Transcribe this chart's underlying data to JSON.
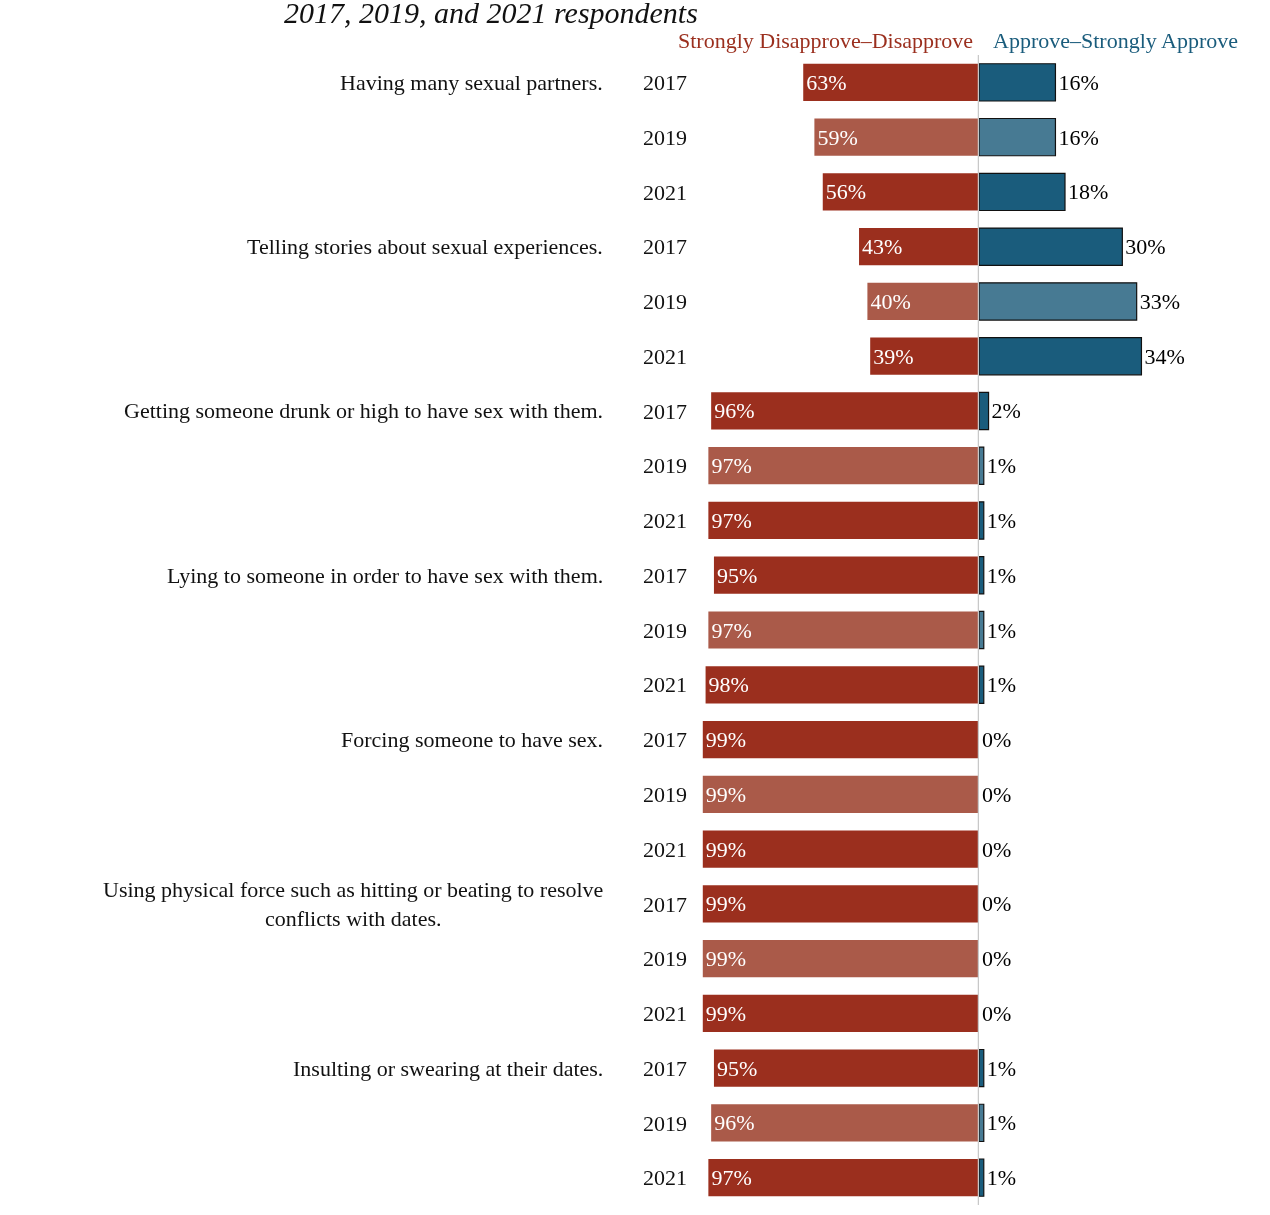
{
  "chart_data": [
    {
      "type": "bar",
      "orientation": "horizontal",
      "title": "2017, 2019, and 2021 respondents",
      "categories": [
        "2017",
        "2019",
        "2021",
        "2017",
        "2019",
        "2021",
        "2017",
        "2019",
        "2021",
        "2017",
        "2019",
        "2021",
        "2017",
        "2019",
        "2021",
        "2017",
        "2019",
        "2021",
        "2017",
        "2019",
        "2021"
      ],
      "annotations": [
        "Having many sexual partners.",
        "Telling stories about sexual experiences.",
        "Getting someone drunk or high to have sex with them.",
        "Lying to someone in order to have sex with them.",
        "Forcing someone to have sex.",
        "Using physical force such as hitting or beating to resolve conflicts with dates.",
        "Insulting or swearing at their dates."
      ],
      "series": [
        {
          "name": "Strongly Disapprove–Disapprove",
          "color": "#9b2f1e",
          "colors": [
            "#9b2f1e",
            "#aa5a49",
            "#9b2f1e",
            "#9b2f1e",
            "#aa5a49",
            "#9b2f1e",
            "#9b2f1e",
            "#aa5a49",
            "#9b2f1e",
            "#9b2f1e",
            "#aa5a49",
            "#9b2f1e",
            "#9b2f1e",
            "#aa5a49",
            "#9b2f1e",
            "#9b2f1e",
            "#aa5a49",
            "#9b2f1e",
            "#9b2f1e",
            "#aa5a49",
            "#9b2f1e"
          ],
          "values": [
            63,
            59,
            56,
            43,
            40,
            39,
            96,
            97,
            97,
            95,
            97,
            98,
            99,
            99,
            99,
            99,
            99,
            99,
            95,
            96,
            97
          ],
          "value_labels": [
            "63%",
            "59%",
            "56%",
            "43%",
            "40%",
            "39%",
            "96%",
            "97%",
            "97%",
            "95%",
            "97%",
            "98%",
            "99%",
            "99%",
            "99%",
            "99%",
            "99%",
            "99%",
            "95%",
            "96%",
            "97%"
          ]
        }
      ],
      "xlim": [
        100,
        0
      ],
      "tick_labels": "y",
      "legend": false,
      "ref_lines": [
        {
          "axis": "x",
          "value": 0,
          "color": "#c8c8c8"
        }
      ]
    },
    {
      "type": "bar",
      "orientation": "horizontal",
      "categories": [
        "2017",
        "2019",
        "2021",
        "2017",
        "2019",
        "2021",
        "2017",
        "2019",
        "2021",
        "2017",
        "2019",
        "2021",
        "2017",
        "2019",
        "2021",
        "2017",
        "2019",
        "2021",
        "2017",
        "2019",
        "2021"
      ],
      "series": [
        {
          "name": "Approve–Strongly Approve",
          "color": "#1a5c7c",
          "colors": [
            "#1a5c7c",
            "#477a93",
            "#1a5c7c",
            "#1a5c7c",
            "#477a93",
            "#1a5c7c",
            "#1a5c7c",
            "#477a93",
            "#1a5c7c",
            "#1a5c7c",
            "#477a93",
            "#1a5c7c",
            "#1a5c7c",
            "#477a93",
            "#1a5c7c",
            "#1a5c7c",
            "#477a93",
            "#1a5c7c",
            "#1a5c7c",
            "#477a93",
            "#1a5c7c"
          ],
          "values": [
            16,
            16,
            18,
            30,
            33,
            34,
            2,
            1,
            1,
            1,
            1,
            1,
            0,
            0,
            0,
            0,
            0,
            0,
            1,
            1,
            1
          ],
          "value_labels": [
            "16%",
            "16%",
            "18%",
            "30%",
            "33%",
            "34%",
            "2%",
            "1%",
            "1%",
            "1%",
            "1%",
            "1%",
            "0%",
            "0%",
            "0%",
            "0%",
            "0%",
            "0%",
            "1%",
            "1%",
            "1%"
          ]
        }
      ],
      "tick_labels": false,
      "legend": false
    }
  ]
}
